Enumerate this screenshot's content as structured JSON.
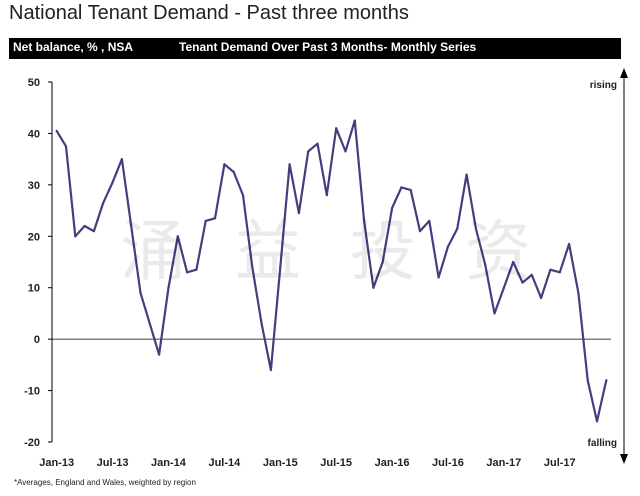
{
  "header": {
    "page_title": "National Tenant Demand - Past three months",
    "bar_left": "Net balance, % , NSA",
    "bar_center": "Tenant Demand Over Past 3 Months- Monthly Series"
  },
  "footnote": "*Averages, England and Wales, weighted by region",
  "watermark": "涌 益 投 资",
  "chart_data": {
    "type": "line",
    "ylim": [
      -20,
      50
    ],
    "yticks": [
      50,
      40,
      30,
      20,
      10,
      0,
      -10,
      -20
    ],
    "xtick_labels": [
      "Jan-13",
      "Jul-13",
      "Jan-14",
      "Jul-14",
      "Jan-15",
      "Jul-15",
      "Jan-16",
      "Jul-16",
      "Jan-17",
      "Jul-17"
    ],
    "xtick_every": 6,
    "arrow_top_label": "rising",
    "arrow_bottom_label": "falling",
    "line_color": "#4b3a7d",
    "series": [
      {
        "values": [
          40.5,
          37.5,
          20,
          22,
          21,
          26.5,
          30.5,
          35,
          22,
          9,
          3,
          -3,
          10,
          20,
          13,
          13.5,
          23,
          23.5,
          34,
          32.5,
          28,
          14,
          3,
          -6,
          14,
          34,
          24.5,
          36.5,
          38,
          28,
          41,
          36.5,
          42.5,
          23,
          10,
          15,
          25.5,
          29.5,
          29,
          21,
          23,
          12,
          18,
          21.5,
          32,
          21.5,
          14.5,
          5,
          10,
          15,
          11,
          12.5,
          8,
          13.5,
          13,
          18.5,
          9,
          -8,
          -16,
          -8
        ]
      }
    ]
  }
}
